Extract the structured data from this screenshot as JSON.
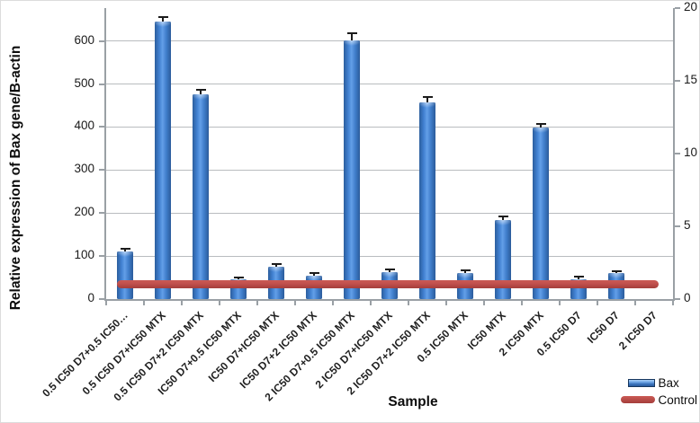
{
  "chart_data": {
    "type": "bar",
    "title": "",
    "xlabel": "Sample",
    "ylabel": "Relative expression of Bax gene/B-actin",
    "categories": [
      "0.5 IC50 D7+0.5 IC50…",
      "0.5 IC50 D7+IC50 MTX",
      "0.5 IC50 D7+2 IC50 MTX",
      "IC50 D7+0.5 IC50 MTX",
      "IC50 D7+IC50 MTX",
      "IC50 D7+2 IC50 MTX",
      "2 IC50 D7+0.5 IC50 MTX",
      "2 IC50 D7+IC50 MTX",
      "2 IC50 D7+2 IC50 MTX",
      "0.5 IC50 MTX",
      "IC50 MTX",
      "2 IC50 MTX",
      "0.5 IC50 D7",
      "IC50 D7",
      "2 IC50 D7"
    ],
    "series": [
      {
        "name": "Bax",
        "type": "bar",
        "axis": "left",
        "color": "#3f7dca",
        "values": [
          110,
          645,
          477,
          45,
          75,
          55,
          602,
          62,
          458,
          60,
          183,
          398,
          45,
          60,
          0
        ],
        "errors": [
          6,
          10,
          9,
          5,
          6,
          4,
          14,
          5,
          10,
          5,
          8,
          9,
          6,
          3,
          0
        ]
      },
      {
        "name": "Control",
        "type": "line",
        "axis": "right",
        "color": "#c0504d",
        "value": 1
      }
    ],
    "left_axis": {
      "ticks": [
        0,
        100,
        200,
        300,
        400,
        500,
        600
      ],
      "max": 676
    },
    "right_axis": {
      "ticks": [
        0,
        5,
        10,
        15,
        20
      ],
      "max": 20
    },
    "grid": true,
    "legend_position": "bottom-right"
  }
}
